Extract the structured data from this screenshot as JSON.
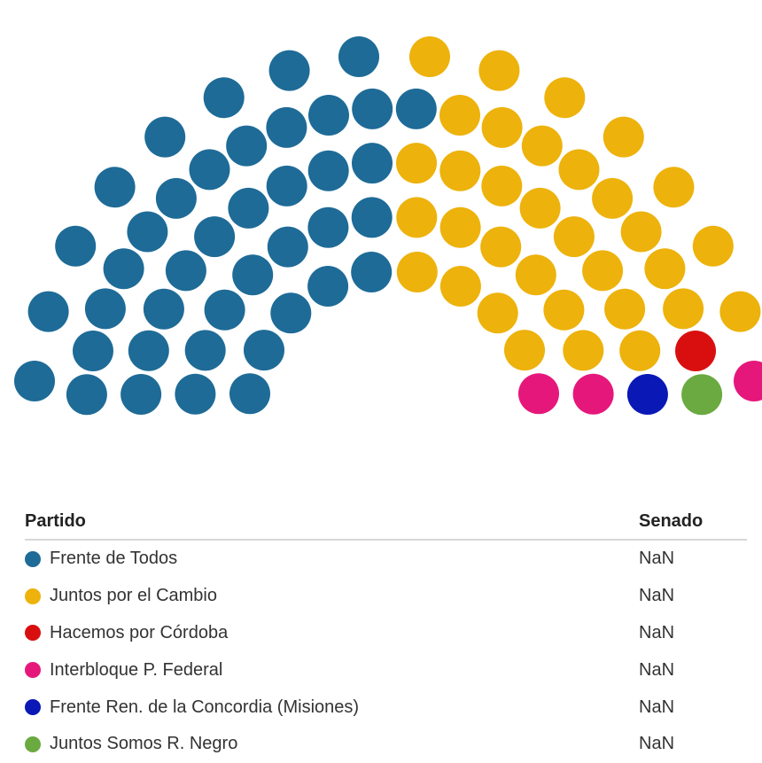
{
  "chart_data": {
    "type": "parliament",
    "title": "",
    "parties": [
      {
        "name": "Frente de Todos",
        "seats": 41,
        "color": "#1e6b97"
      },
      {
        "name": "Juntos por el Cambio",
        "seats": 33,
        "color": "#edb20b"
      },
      {
        "name": "Hacemos por Córdoba",
        "seats": 1,
        "color": "#d90f0f"
      },
      {
        "name": "Interbloque P. Federal",
        "seats": 3,
        "color": "#e6177b"
      },
      {
        "name": "Frente Ren. de la Concordia (Misiones)",
        "seats": 1,
        "color": "#0a18b5"
      },
      {
        "name": "Juntos Somos R. Negro",
        "seats": 1,
        "color": "#6aaa40"
      }
    ]
  },
  "table": {
    "header_party": "Partido",
    "header_senado": "Senado",
    "rows": [
      {
        "party": "Frente de Todos",
        "senado": "NaN",
        "color": "#1e6b97"
      },
      {
        "party": "Juntos por el Cambio",
        "senado": "NaN",
        "color": "#edb20b"
      },
      {
        "party": "Hacemos por Córdoba",
        "senado": "NaN",
        "color": "#d90f0f"
      },
      {
        "party": "Interbloque P. Federal",
        "senado": "NaN",
        "color": "#e6177b"
      },
      {
        "party": "Frente Ren. de la Concordia (Misiones)",
        "senado": "NaN",
        "color": "#0a18b5"
      },
      {
        "party": "Juntos Somos R. Negro",
        "senado": "NaN",
        "color": "#6aaa40"
      }
    ]
  }
}
